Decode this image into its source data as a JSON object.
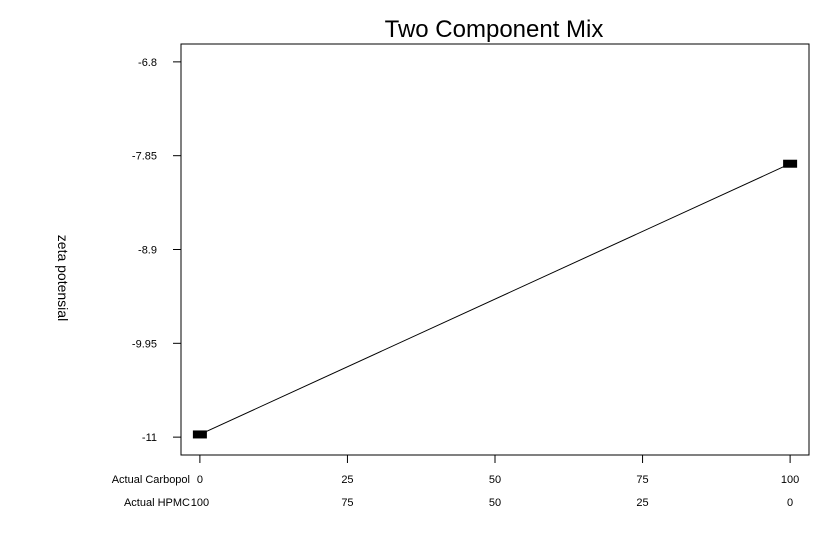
{
  "chart_data": {
    "type": "line",
    "title": "Two Component Mix",
    "ylabel": "zeta potensial",
    "ylim": [
      -11.2,
      -6.6
    ],
    "yticks": [
      -6.8,
      -7.85,
      -8.9,
      -9.95,
      -11
    ],
    "ytick_labels": [
      "-6.8",
      "-7.85",
      "-8.9",
      "-9.95",
      "-11"
    ],
    "xlim": [
      -3.2,
      103.2
    ],
    "xticks": [
      0,
      25,
      50,
      75,
      100
    ],
    "x_rows": [
      {
        "label": "Actual Carbopol",
        "ticks": [
          "0",
          "25",
          "50",
          "75",
          "100"
        ]
      },
      {
        "label": "Actual HPMC",
        "ticks": [
          "100",
          "75",
          "50",
          "25",
          "0"
        ]
      }
    ],
    "series": [
      {
        "x": [
          0,
          100
        ],
        "y": [
          -10.97,
          -7.94
        ]
      }
    ],
    "markers": [
      {
        "x": 0,
        "y": -10.97
      },
      {
        "x": 100,
        "y": -7.94
      }
    ],
    "grid": false,
    "line_color": "#000000"
  }
}
